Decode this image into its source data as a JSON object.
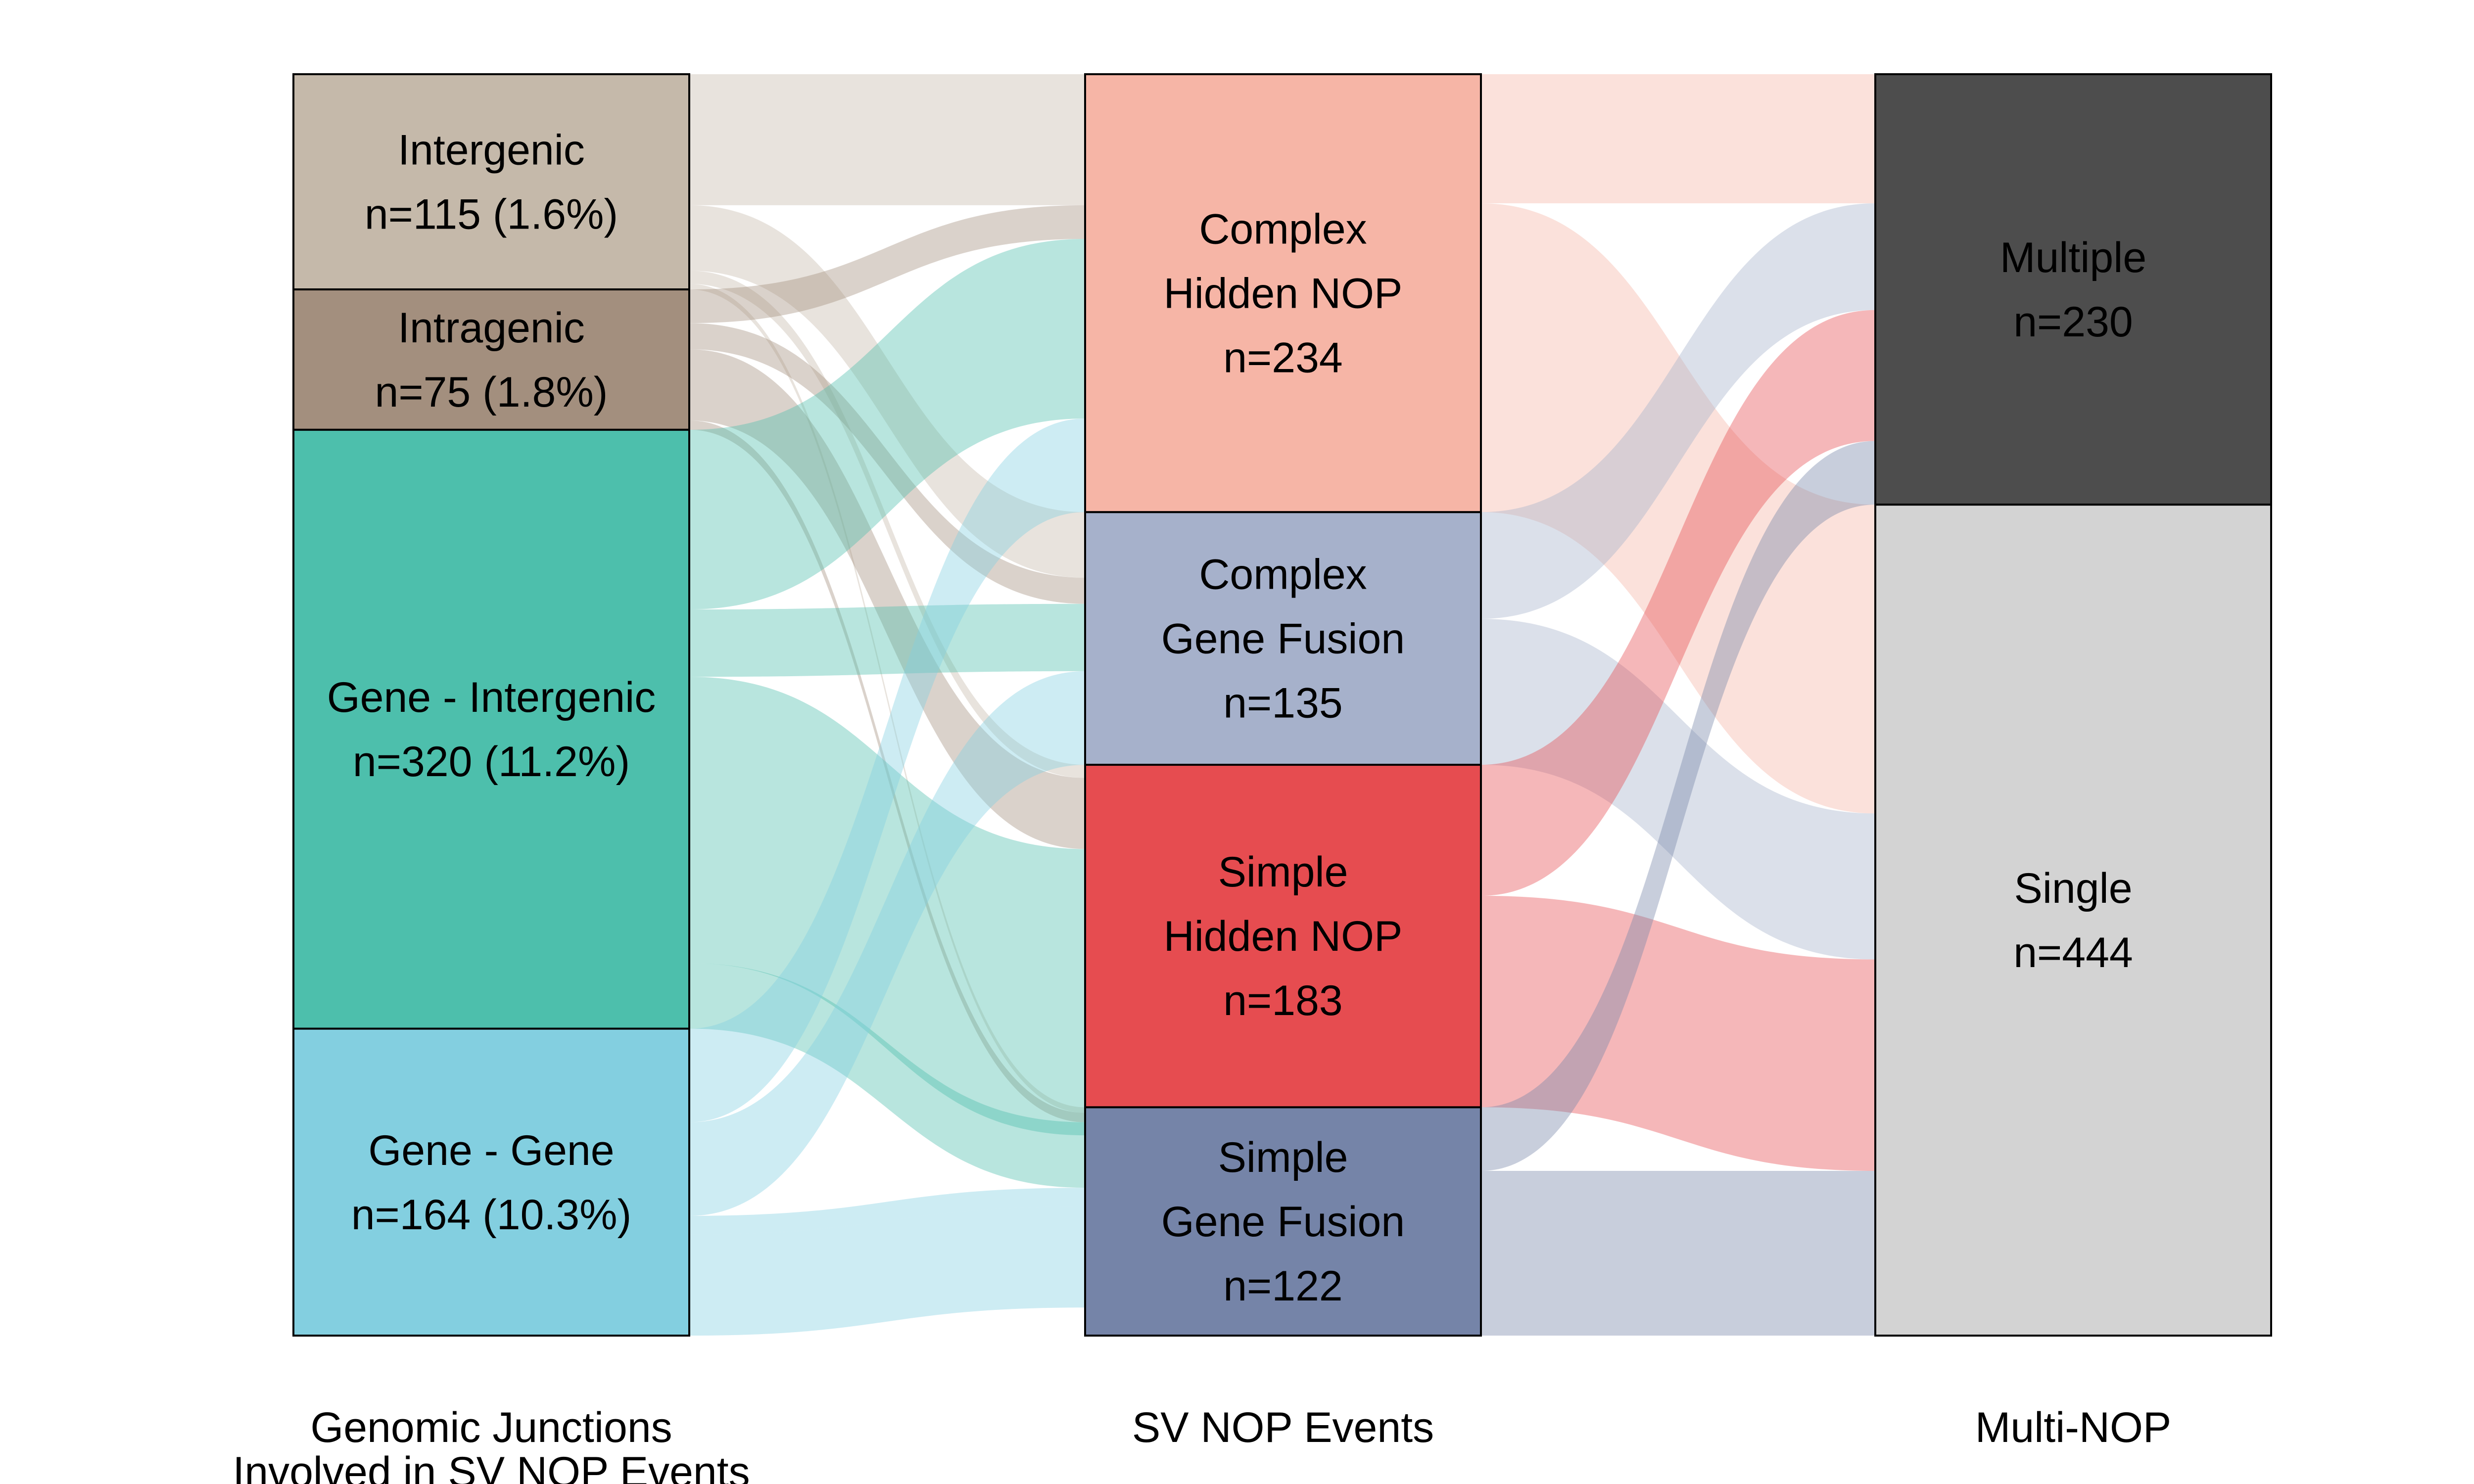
{
  "chart_data": {
    "type": "sankey",
    "stages": [
      {
        "id": "junctions",
        "label": [
          "Genomic Junctions",
          "Involved in SV NOP Events"
        ]
      },
      {
        "id": "events",
        "label": [
          "SV NOP Events"
        ]
      },
      {
        "id": "multi",
        "label": [
          "Multi-NOP"
        ]
      }
    ],
    "nodes": [
      {
        "id": "intergenic",
        "stage": 0,
        "lines": [
          "Intergenic",
          "n=115 (1.6%)"
        ],
        "n": 115,
        "color": "#c5b9aa"
      },
      {
        "id": "intragenic",
        "stage": 0,
        "lines": [
          "Intragenic",
          "n=75 (1.8%)"
        ],
        "n": 75,
        "color": "#a38f7e"
      },
      {
        "id": "gene_intergenic",
        "stage": 0,
        "lines": [
          "Gene - Intergenic",
          "n=320 (11.2%)"
        ],
        "n": 320,
        "color": "#4dbfac"
      },
      {
        "id": "gene_gene",
        "stage": 0,
        "lines": [
          "Gene - Gene",
          "n=164 (10.3%)"
        ],
        "n": 164,
        "color": "#83cfe0"
      },
      {
        "id": "complex_hidden",
        "stage": 1,
        "lines": [
          "Complex",
          "Hidden NOP",
          "n=234"
        ],
        "n": 234,
        "color": "#f6b5a6"
      },
      {
        "id": "complex_fusion",
        "stage": 1,
        "lines": [
          "Complex",
          "Gene Fusion",
          "n=135"
        ],
        "n": 135,
        "color": "#a6b1cb"
      },
      {
        "id": "simple_hidden",
        "stage": 1,
        "lines": [
          "Simple",
          "Hidden NOP",
          "n=183"
        ],
        "n": 183,
        "color": "#e64c50"
      },
      {
        "id": "simple_fusion",
        "stage": 1,
        "lines": [
          "Simple",
          "Gene Fusion",
          "n=122"
        ],
        "n": 122,
        "color": "#7584a8"
      },
      {
        "id": "multiple",
        "stage": 2,
        "lines": [
          "Multiple",
          "n=230"
        ],
        "n": 230,
        "color": "#4d4d4d"
      },
      {
        "id": "single",
        "stage": 2,
        "lines": [
          "Single",
          "n=444"
        ],
        "n": 444,
        "color": "#d3d3d3"
      }
    ],
    "links": [
      {
        "source": "intergenic",
        "target": "complex_hidden",
        "value": 70
      },
      {
        "source": "intergenic",
        "target": "complex_fusion",
        "value": 35
      },
      {
        "source": "intergenic",
        "target": "simple_hidden",
        "value": 7
      },
      {
        "source": "intergenic",
        "target": "simple_fusion",
        "value": 3
      },
      {
        "source": "intergenic",
        "target": "complex_hidden",
        "value": 0
      },
      {
        "source": "intragenic",
        "target": "complex_hidden",
        "value": 18
      },
      {
        "source": "intragenic",
        "target": "complex_fusion",
        "value": 14
      },
      {
        "source": "intragenic",
        "target": "simple_hidden",
        "value": 38
      },
      {
        "source": "intragenic",
        "target": "simple_fusion",
        "value": 5
      },
      {
        "source": "gene_intergenic",
        "target": "complex_hidden",
        "value": 96
      },
      {
        "source": "gene_intergenic",
        "target": "complex_fusion",
        "value": 36
      },
      {
        "source": "gene_intergenic",
        "target": "simple_hidden",
        "value": 153
      },
      {
        "source": "gene_intergenic",
        "target": "simple_fusion",
        "value": 35
      },
      {
        "source": "gene_gene",
        "target": "complex_hidden",
        "value": 50
      },
      {
        "source": "gene_gene",
        "target": "complex_fusion",
        "value": 50
      },
      {
        "source": "gene_gene",
        "target": "simple_hidden",
        "value": 0
      },
      {
        "source": "gene_gene",
        "target": "simple_fusion",
        "value": 10
      },
      {
        "source": "gene_gene",
        "target": "simple_fusion",
        "value": 54
      },
      {
        "source": "complex_hidden",
        "target": "multiple",
        "value": 69
      },
      {
        "source": "complex_hidden",
        "target": "single",
        "value": 165
      },
      {
        "source": "complex_fusion",
        "target": "multiple",
        "value": 57
      },
      {
        "source": "complex_fusion",
        "target": "single",
        "value": 78
      },
      {
        "source": "simple_hidden",
        "target": "multiple",
        "value": 70
      },
      {
        "source": "simple_hidden",
        "target": "single",
        "value": 113
      },
      {
        "source": "simple_fusion",
        "target": "multiple",
        "value": 34
      },
      {
        "source": "simple_fusion",
        "target": "single",
        "value": 88
      }
    ]
  }
}
